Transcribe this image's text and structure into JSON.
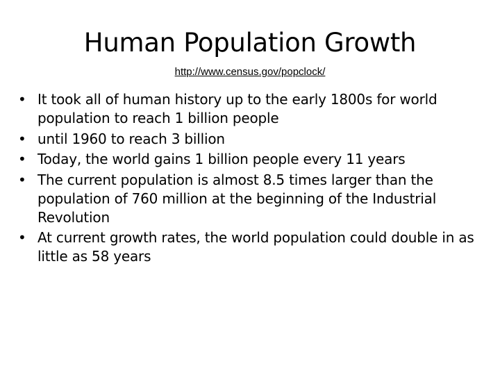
{
  "slide": {
    "title": "Human Population Growth",
    "link": "http://www.census.gov/popclock/",
    "bullet_symbol": "•",
    "bullets": [
      "It took all of human history up to the early 1800s for world population to reach 1 billion people",
      "until 1960 to reach 3 billion",
      "Today, the world gains 1 billion people every 11 years",
      "The current population is almost 8.5 times larger than the population of 760 million at the beginning of the Industrial Revolution",
      "At current growth rates, the world population could double in as little as 58 years"
    ]
  }
}
